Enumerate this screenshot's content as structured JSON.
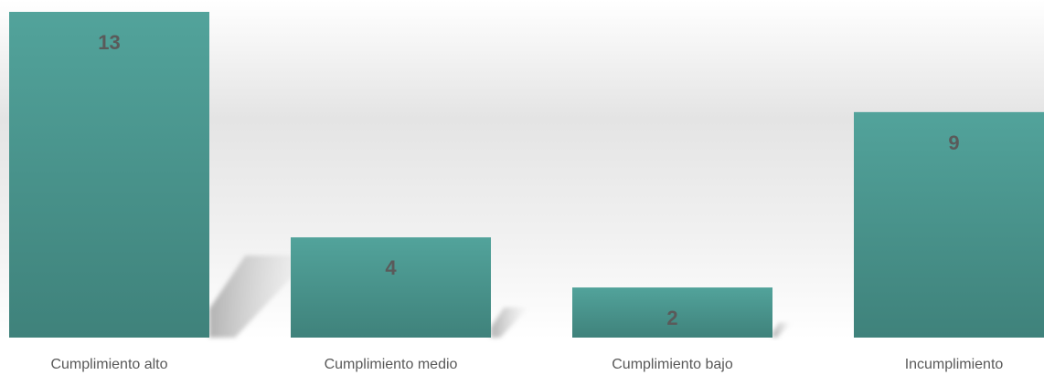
{
  "chart_data": {
    "type": "bar",
    "categories": [
      "Cumplimiento alto",
      "Cumplimiento medio",
      "Cumplimiento bajo",
      "Incumplimiento"
    ],
    "values": [
      13,
      4,
      2,
      9
    ],
    "data_labels": [
      "13",
      "4",
      "2",
      "9"
    ],
    "title": "",
    "xlabel": "",
    "ylabel": "",
    "ylim": [
      0,
      13
    ],
    "grid": false,
    "legend": "none",
    "colors": {
      "bar_top": "#52a39b",
      "bar_bottom": "#3f827b",
      "label_text": "#5a5a5a",
      "category_text": "#595959",
      "background_mid": "#e2e2e2"
    }
  }
}
